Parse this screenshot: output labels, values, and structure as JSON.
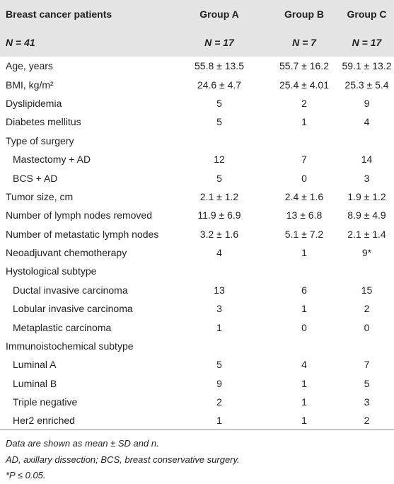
{
  "header": {
    "title": "Breast cancer patients",
    "n": "N = 41",
    "groups": [
      {
        "name": "Group A",
        "n": "N = 17"
      },
      {
        "name": "Group B",
        "n": "N = 7"
      },
      {
        "name": "Group C",
        "n": "N = 17"
      }
    ]
  },
  "rows": [
    {
      "label": "Age, years",
      "values": [
        "55.8 ± 13.5",
        "55.7 ± 16.2",
        "59.1 ± 13.2"
      ]
    },
    {
      "label": "BMI, kg/m²",
      "values": [
        "24.6 ± 4.7",
        "25.4 ± 4.01",
        "25.3 ± 5.4"
      ]
    },
    {
      "label": "Dyslipidemia",
      "values": [
        "5",
        "2",
        "9"
      ]
    },
    {
      "label": "Diabetes mellitus",
      "values": [
        "5",
        "1",
        "4"
      ]
    },
    {
      "label": "Type of surgery",
      "rows": [
        {
          "label": "Mastectomy + AD",
          "values": [
            "12",
            "7",
            "14"
          ]
        },
        {
          "label": "BCS + AD",
          "values": [
            "5",
            "0",
            "3"
          ]
        }
      ]
    },
    {
      "label": "Tumor size, cm",
      "values": [
        "2.1 ± 1.2",
        "2.4 ± 1.6",
        "1.9 ± 1.2"
      ]
    },
    {
      "label": "Number of lymph nodes removed",
      "values": [
        "11.9 ± 6.9",
        "13 ± 6.8",
        "8.9 ± 4.9"
      ]
    },
    {
      "label": "Number of metastatic lymph nodes",
      "values": [
        "3.2 ± 1.6",
        "5.1 ± 7.2",
        "2.1 ± 1.4"
      ]
    },
    {
      "label": "Neoadjuvant chemotherapy",
      "values": [
        "4",
        "1",
        "9*"
      ]
    },
    {
      "label": "Hystological subtype",
      "rows": [
        {
          "label": "Ductal invasive carcinoma",
          "values": [
            "13",
            "6",
            "15"
          ]
        },
        {
          "label": "Lobular invasive carcinoma",
          "values": [
            "3",
            "1",
            "2"
          ]
        },
        {
          "label": "Metaplastic carcinoma",
          "values": [
            "1",
            "0",
            "0"
          ]
        }
      ]
    },
    {
      "label": "Immunoistochemical subtype",
      "rows": [
        {
          "label": "Luminal A",
          "values": [
            "5",
            "4",
            "7"
          ]
        },
        {
          "label": "Luminal B",
          "values": [
            "9",
            "1",
            "5"
          ]
        },
        {
          "label": "Triple negative",
          "values": [
            "2",
            "1",
            "3"
          ]
        },
        {
          "label": "Her2 enriched",
          "values": [
            "1",
            "1",
            "2"
          ]
        }
      ]
    }
  ],
  "footnotes": [
    "Data are shown as mean ± SD and n.",
    "AD, axillary dissection; BCS, breast conservative surgery.",
    "*P ≤ 0.05."
  ]
}
